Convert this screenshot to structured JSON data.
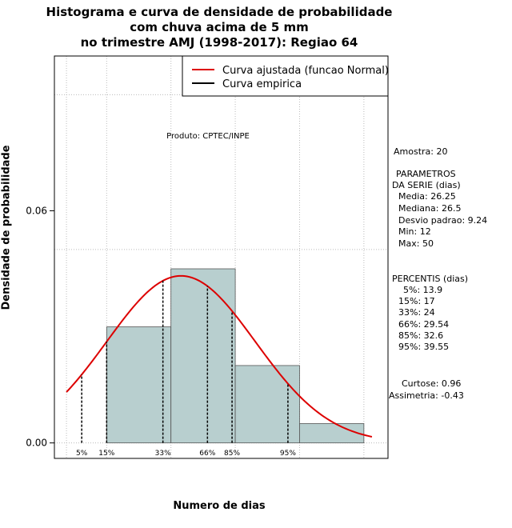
{
  "chart_data": {
    "type": "bar",
    "title_lines": [
      "Histograma e curva de densidade de probabilidade",
      "com chuva acima de 5 mm",
      "no trimestre AMJ (1998-2017): Regiao 64"
    ],
    "xlabel": "Numero de dias",
    "ylabel": "Densidade de probabilidade",
    "xlim": [
      10.5,
      52
    ],
    "ylim": [
      -0.004,
      0.1
    ],
    "y_ticks": [
      0.0,
      0.06
    ],
    "y_tick_labels": [
      "0.00",
      "0.06"
    ],
    "histogram": {
      "bin_edges": [
        17,
        25,
        33,
        41,
        49
      ],
      "densities": [
        0.03,
        0.045,
        0.02,
        0.005
      ]
    },
    "normal_curve": {
      "mean": 26.25,
      "sd": 9.24,
      "x_range": [
        12,
        50
      ]
    },
    "percentiles": [
      {
        "label": "5%",
        "value": 13.9
      },
      {
        "label": "15%",
        "value": 17
      },
      {
        "label": "33%",
        "value": 24
      },
      {
        "label": "66%",
        "value": 29.54
      },
      {
        "label": "85%",
        "value": 32.6
      },
      {
        "label": "95%",
        "value": 39.55
      }
    ],
    "annotation": "Produto: CPTEC/INPE",
    "legend": {
      "position": "top-right",
      "entries": [
        {
          "label": "Curva ajustada (funcao Normal)",
          "color": "#dd0000"
        },
        {
          "label": "Curva empirica",
          "color": "#000000"
        }
      ]
    },
    "colors": {
      "bar_fill": "#b8cfcf",
      "fit_curve": "#dd0000",
      "empirical": "#000000",
      "grid": "#bbbbbb"
    }
  },
  "stats": {
    "amostra": "Amostra: 20",
    "parametros_title": "PARAMETROS",
    "da_serie": "DA SERIE (dias)",
    "media": "Media: 26.25",
    "mediana": "Mediana: 26.5",
    "desvio": "Desvio padrao: 9.24",
    "min": "Min: 12",
    "max": "Max: 50",
    "percentis_title": "PERCENTIS (dias)",
    "p5": "5%: 13.9",
    "p15": "15%: 17",
    "p33": "33%: 24",
    "p66": "66%: 29.54",
    "p85": "85%: 32.6",
    "p95": "95%: 39.55",
    "curtose": "Curtose: 0.96",
    "assimetria": "Assimetria: -0.43"
  }
}
